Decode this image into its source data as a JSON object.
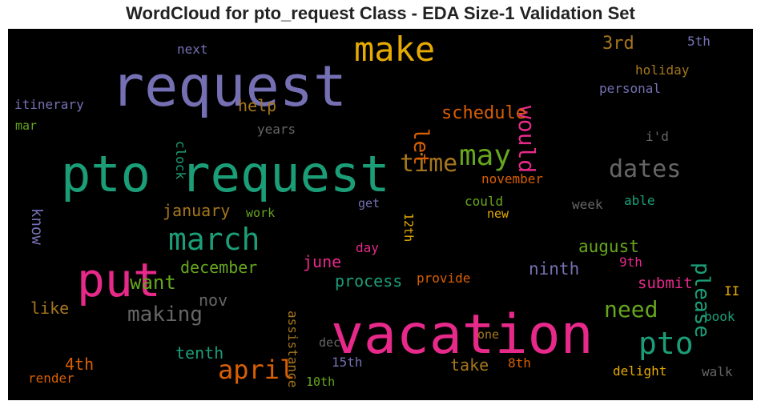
{
  "title": "WordCloud for pto_request Class - EDA Size-1 Validation Set",
  "chart_data": {
    "type": "wordcloud",
    "title": "WordCloud for pto_request Class - EDA Size-1 Validation Set",
    "background": "#000000",
    "words": [
      {
        "text": "request",
        "weight": 70,
        "color": "#7570b3",
        "rotate": 0
      },
      {
        "text": "pto request",
        "weight": 62,
        "color": "#1b9e77",
        "rotate": 0
      },
      {
        "text": "vacation",
        "weight": 68,
        "color": "#e7298a",
        "rotate": 0
      },
      {
        "text": "put",
        "weight": 58,
        "color": "#e7298a",
        "rotate": 0
      },
      {
        "text": "make",
        "weight": 42,
        "color": "#e6ab02",
        "rotate": 0
      },
      {
        "text": "march",
        "weight": 38,
        "color": "#1b9e77",
        "rotate": 0
      },
      {
        "text": "may",
        "weight": 36,
        "color": "#66a61e",
        "rotate": 0
      },
      {
        "text": "pto",
        "weight": 38,
        "color": "#1b9e77",
        "rotate": 0
      },
      {
        "text": "april",
        "weight": 32,
        "color": "#d95f02",
        "rotate": 0
      },
      {
        "text": "time",
        "weight": 30,
        "color": "#a6761d",
        "rotate": 0
      },
      {
        "text": "dates",
        "weight": 30,
        "color": "#666666",
        "rotate": 0
      },
      {
        "text": "need",
        "weight": 28,
        "color": "#66a61e",
        "rotate": 0
      },
      {
        "text": "making",
        "weight": 26,
        "color": "#666666",
        "rotate": 0
      },
      {
        "text": "want",
        "weight": 24,
        "color": "#66a61e",
        "rotate": 0
      },
      {
        "text": "would",
        "weight": 28,
        "color": "#e7298a",
        "rotate": 90
      },
      {
        "text": "let",
        "weight": 26,
        "color": "#d95f02",
        "rotate": 90
      },
      {
        "text": "please",
        "weight": 26,
        "color": "#1b9e77",
        "rotate": 90
      },
      {
        "text": "3rd",
        "weight": 22,
        "color": "#a6761d",
        "rotate": 0
      },
      {
        "text": "schedule",
        "weight": 22,
        "color": "#d95f02",
        "rotate": 0
      },
      {
        "text": "help",
        "weight": 20,
        "color": "#a6761d",
        "rotate": 0
      },
      {
        "text": "january",
        "weight": 20,
        "color": "#a6761d",
        "rotate": 0
      },
      {
        "text": "december",
        "weight": 20,
        "color": "#66a61e",
        "rotate": 0
      },
      {
        "text": "august",
        "weight": 21,
        "color": "#66a61e",
        "rotate": 0
      },
      {
        "text": "process",
        "weight": 20,
        "color": "#1b9e77",
        "rotate": 0
      },
      {
        "text": "ninth",
        "weight": 21,
        "color": "#7570b3",
        "rotate": 0
      },
      {
        "text": "june",
        "weight": 20,
        "color": "#e7298a",
        "rotate": 0
      },
      {
        "text": "nov",
        "weight": 20,
        "color": "#666666",
        "rotate": 0
      },
      {
        "text": "like",
        "weight": 20,
        "color": "#a6761d",
        "rotate": 0
      },
      {
        "text": "tenth",
        "weight": 20,
        "color": "#1b9e77",
        "rotate": 0
      },
      {
        "text": "4th",
        "weight": 20,
        "color": "#d95f02",
        "rotate": 0
      },
      {
        "text": "take",
        "weight": 20,
        "color": "#a6761d",
        "rotate": 0
      },
      {
        "text": "submit",
        "weight": 19,
        "color": "#e7298a",
        "rotate": 0
      },
      {
        "text": "know",
        "weight": 19,
        "color": "#7570b3",
        "rotate": 90
      },
      {
        "text": "clock",
        "weight": 16,
        "color": "#1b9e77",
        "rotate": 90
      },
      {
        "text": "assistance",
        "weight": 16,
        "color": "#a6761d",
        "rotate": 90
      },
      {
        "text": "12th",
        "weight": 15,
        "color": "#e6ab02",
        "rotate": 90
      },
      {
        "text": "next",
        "weight": 16,
        "color": "#7570b3",
        "rotate": 0
      },
      {
        "text": "itinerary",
        "weight": 16,
        "color": "#7570b3",
        "rotate": 0
      },
      {
        "text": "mar",
        "weight": 15,
        "color": "#66a61e",
        "rotate": 0
      },
      {
        "text": "years",
        "weight": 16,
        "color": "#666666",
        "rotate": 0
      },
      {
        "text": "5th",
        "weight": 16,
        "color": "#7570b3",
        "rotate": 0
      },
      {
        "text": "holiday",
        "weight": 16,
        "color": "#a6761d",
        "rotate": 0
      },
      {
        "text": "personal",
        "weight": 16,
        "color": "#7570b3",
        "rotate": 0
      },
      {
        "text": "i'd",
        "weight": 16,
        "color": "#666666",
        "rotate": 0
      },
      {
        "text": "november",
        "weight": 16,
        "color": "#d95f02",
        "rotate": 0
      },
      {
        "text": "could",
        "weight": 16,
        "color": "#66a61e",
        "rotate": 0
      },
      {
        "text": "get",
        "weight": 15,
        "color": "#7570b3",
        "rotate": 0
      },
      {
        "text": "new",
        "weight": 15,
        "color": "#e6ab02",
        "rotate": 0
      },
      {
        "text": "week",
        "weight": 16,
        "color": "#666666",
        "rotate": 0
      },
      {
        "text": "able",
        "weight": 16,
        "color": "#1b9e77",
        "rotate": 0
      },
      {
        "text": "work",
        "weight": 15,
        "color": "#66a61e",
        "rotate": 0
      },
      {
        "text": "day",
        "weight": 16,
        "color": "#e7298a",
        "rotate": 0
      },
      {
        "text": "9th",
        "weight": 16,
        "color": "#e7298a",
        "rotate": 0
      },
      {
        "text": "provide",
        "weight": 16,
        "color": "#d95f02",
        "rotate": 0
      },
      {
        "text": "II",
        "weight": 16,
        "color": "#e6ab02",
        "rotate": 0
      },
      {
        "text": "book",
        "weight": 16,
        "color": "#1b9e77",
        "rotate": 0
      },
      {
        "text": "one",
        "weight": 15,
        "color": "#a6761d",
        "rotate": 0
      },
      {
        "text": "dec",
        "weight": 15,
        "color": "#666666",
        "rotate": 0
      },
      {
        "text": "15th",
        "weight": 16,
        "color": "#7570b3",
        "rotate": 0
      },
      {
        "text": "8th",
        "weight": 16,
        "color": "#d95f02",
        "rotate": 0
      },
      {
        "text": "delight",
        "weight": 16,
        "color": "#e6ab02",
        "rotate": 0
      },
      {
        "text": "walk",
        "weight": 16,
        "color": "#666666",
        "rotate": 0
      },
      {
        "text": "render",
        "weight": 16,
        "color": "#d95f02",
        "rotate": 0
      },
      {
        "text": "10th",
        "weight": 15,
        "color": "#66a61e",
        "rotate": 0
      }
    ]
  }
}
